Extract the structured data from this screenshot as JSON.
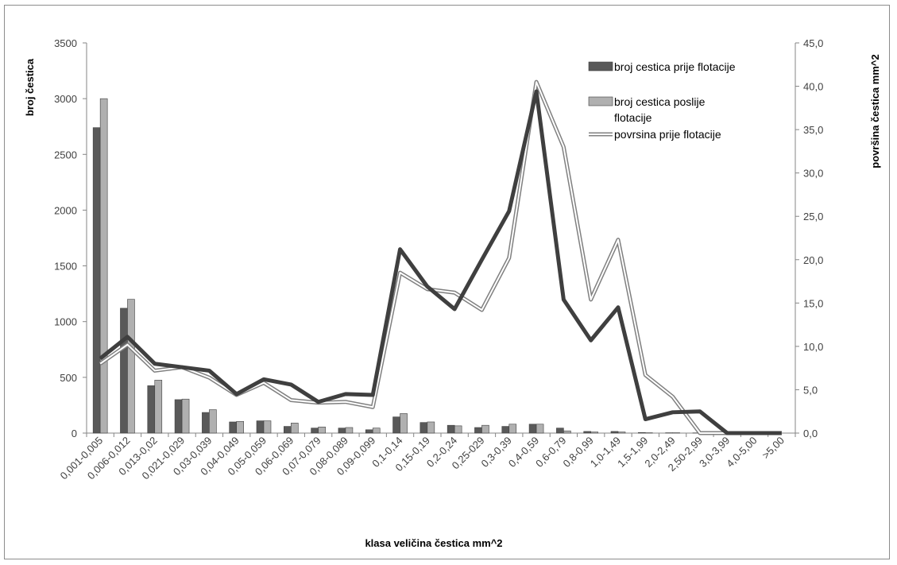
{
  "chart_data": {
    "type": "bar",
    "xlabel": "klasa veličina čestica mm^2",
    "ylabel": "broj čestica",
    "y2label": "površina čestica mm^2",
    "ylim": [
      0,
      3500
    ],
    "y_ticks": [
      "0",
      "500",
      "1000",
      "1500",
      "2000",
      "2500",
      "3000",
      "3500"
    ],
    "y2lim": [
      0,
      45
    ],
    "y2_ticks": [
      "0,0",
      "5,0",
      "10,0",
      "15,0",
      "20,0",
      "25,0",
      "30,0",
      "35,0",
      "40,0",
      "45,0"
    ],
    "grid": false,
    "legend_position": "top-right",
    "categories": [
      "0,001-0,005",
      "0,006-0,012",
      "0,013-0,02",
      "0,021-0,029",
      "0,03-0,039",
      "0,04-0,049",
      "0,05-0,059",
      "0,06-0,069",
      "0,07-0,079",
      "0,08-0,089",
      "0,09-0,099",
      "0,1-0,14",
      "0,15-0,19",
      "0,2-0,24",
      "0,25-029",
      "0,3-0,39",
      "0,4-0,59",
      "0,6-0,79",
      "0,8-0,99",
      "1,0-1,49",
      "1,5-1,99",
      "2,0-2,49",
      "2,50-2,99",
      "3,0-3,99",
      "4,0-5,00",
      ">5,00"
    ],
    "series": [
      {
        "name": "broj cestica prije flotacije",
        "kind": "bar",
        "axis": "left",
        "color": "#595959",
        "values": [
          2740,
          1120,
          425,
          300,
          185,
          100,
          110,
          60,
          45,
          45,
          30,
          145,
          95,
          70,
          50,
          60,
          80,
          45,
          15,
          15,
          5,
          3,
          2,
          1,
          0,
          0
        ]
      },
      {
        "name": "broj cestica poslije flotacije",
        "kind": "bar",
        "axis": "left",
        "color": "#b0b0b0",
        "values": [
          3000,
          1200,
          475,
          305,
          210,
          105,
          110,
          90,
          55,
          50,
          45,
          175,
          100,
          65,
          70,
          80,
          80,
          20,
          10,
          10,
          3,
          3,
          8,
          3,
          0,
          0
        ]
      },
      {
        "name": "povrsina prije flotacije",
        "kind": "line-double",
        "axis": "right",
        "color": "#808080",
        "values": [
          8.0,
          10.2,
          7.2,
          7.6,
          6.4,
          4.4,
          5.8,
          3.8,
          3.5,
          3.6,
          3.0,
          18.5,
          16.6,
          16.2,
          14.2,
          20.2,
          40.5,
          33.0,
          15.4,
          22.3,
          6.7,
          4.2,
          0.0,
          0.0,
          0.0,
          0.0
        ]
      },
      {
        "name": "",
        "kind": "line",
        "axis": "right",
        "color": "#3f3f3f",
        "values": [
          8.6,
          11.1,
          8.0,
          7.6,
          7.2,
          4.5,
          6.2,
          5.6,
          3.6,
          4.5,
          4.4,
          21.2,
          16.9,
          14.3,
          20.0,
          25.6,
          39.4,
          15.4,
          10.7,
          14.5,
          1.6,
          2.4,
          2.5,
          0.0,
          0.0,
          0.0
        ]
      }
    ]
  },
  "legend": [
    {
      "label_lines": [
        "broj cestica prije flotacije"
      ],
      "swatch": "bar",
      "color": "#595959"
    },
    {
      "label_lines": [
        "broj cestica poslije",
        "flotacije"
      ],
      "swatch": "bar",
      "color": "#b0b0b0"
    },
    {
      "label_lines": [
        "povrsina prije flotacije"
      ],
      "swatch": "line-double",
      "color": "#808080"
    }
  ]
}
